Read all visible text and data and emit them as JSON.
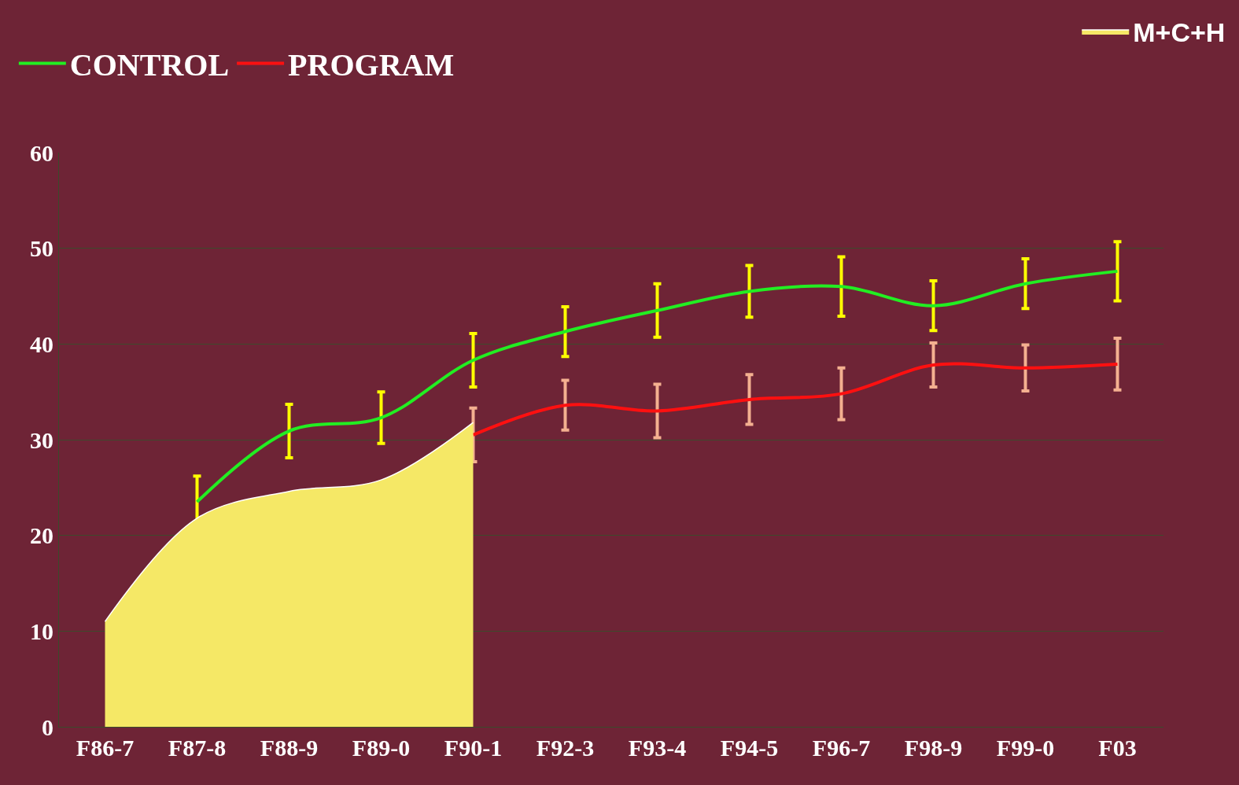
{
  "chart_data": {
    "type": "line",
    "categories": [
      "F86-7",
      "F87-8",
      "F88-9",
      "F89-0",
      "F90-1",
      "F92-3",
      "F93-4",
      "F94-5",
      "F96-7",
      "F98-9",
      "F99-0",
      "F03"
    ],
    "series": [
      {
        "name": "CONTROL",
        "color": "#22ee22",
        "values": [
          null,
          23.5,
          30.9,
          32.3,
          38.3,
          41.3,
          43.5,
          45.5,
          46.0,
          44.0,
          46.3,
          47.6
        ],
        "errors": [
          null,
          2.7,
          2.8,
          2.7,
          2.8,
          2.6,
          2.8,
          2.7,
          3.1,
          2.6,
          2.6,
          3.1
        ]
      },
      {
        "name": "PROGRAM",
        "color": "#ff1010",
        "values": [
          null,
          null,
          null,
          null,
          30.5,
          33.6,
          33.0,
          34.2,
          34.8,
          37.8,
          37.5,
          37.9
        ],
        "errors": [
          null,
          null,
          null,
          null,
          2.8,
          2.6,
          2.8,
          2.6,
          2.7,
          2.3,
          2.4,
          2.7
        ]
      },
      {
        "name": "M+C+H",
        "type": "area",
        "color": "#f5e866",
        "values": [
          11.0,
          21.8,
          24.6,
          25.8,
          31.8,
          null,
          null,
          null,
          null,
          null,
          null,
          null
        ]
      }
    ],
    "ylim": [
      0,
      60
    ],
    "yticks": [
      0,
      10,
      20,
      30,
      40,
      50,
      60
    ],
    "grid": "y",
    "legend": "top left",
    "line_style": "solid",
    "marker": "none"
  }
}
